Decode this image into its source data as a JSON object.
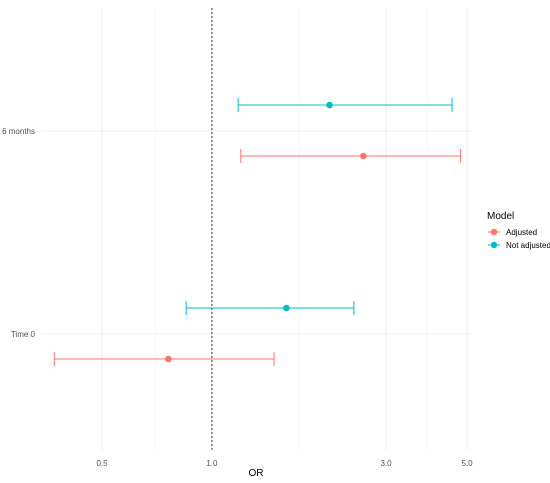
{
  "chart_data": {
    "type": "forest",
    "xlabel": "OR",
    "ylabel": "",
    "x_scale": "log",
    "xlim": [
      0.35,
      5.3
    ],
    "x_ticks": [
      {
        "value": 0.5,
        "label": "0.5"
      },
      {
        "value": 1.0,
        "label": "1.0"
      },
      {
        "value": 3.0,
        "label": "3.0"
      },
      {
        "value": 5.0,
        "label": "5.0"
      }
    ],
    "x_minor_ticks": [
      0.7,
      1.73,
      3.87
    ],
    "reference_line": 1.0,
    "categories": [
      "6 months",
      "Time 0"
    ],
    "legend": {
      "title": "Model",
      "placement": "right"
    },
    "series": [
      {
        "name": "Adjusted",
        "color": "#F8766D",
        "points": [
          {
            "category": "6 months",
            "estimate": 2.6,
            "lower": 1.2,
            "upper": 4.8
          },
          {
            "category": "Time 0",
            "estimate": 0.76,
            "lower": 0.37,
            "upper": 1.48
          }
        ]
      },
      {
        "name": "Not adjusted",
        "color": "#00BFC4",
        "points": [
          {
            "category": "6 months",
            "estimate": 2.1,
            "lower": 1.18,
            "upper": 4.55
          },
          {
            "category": "Time 0",
            "estimate": 1.6,
            "lower": 0.85,
            "upper": 2.45
          }
        ]
      }
    ],
    "grid": true
  }
}
